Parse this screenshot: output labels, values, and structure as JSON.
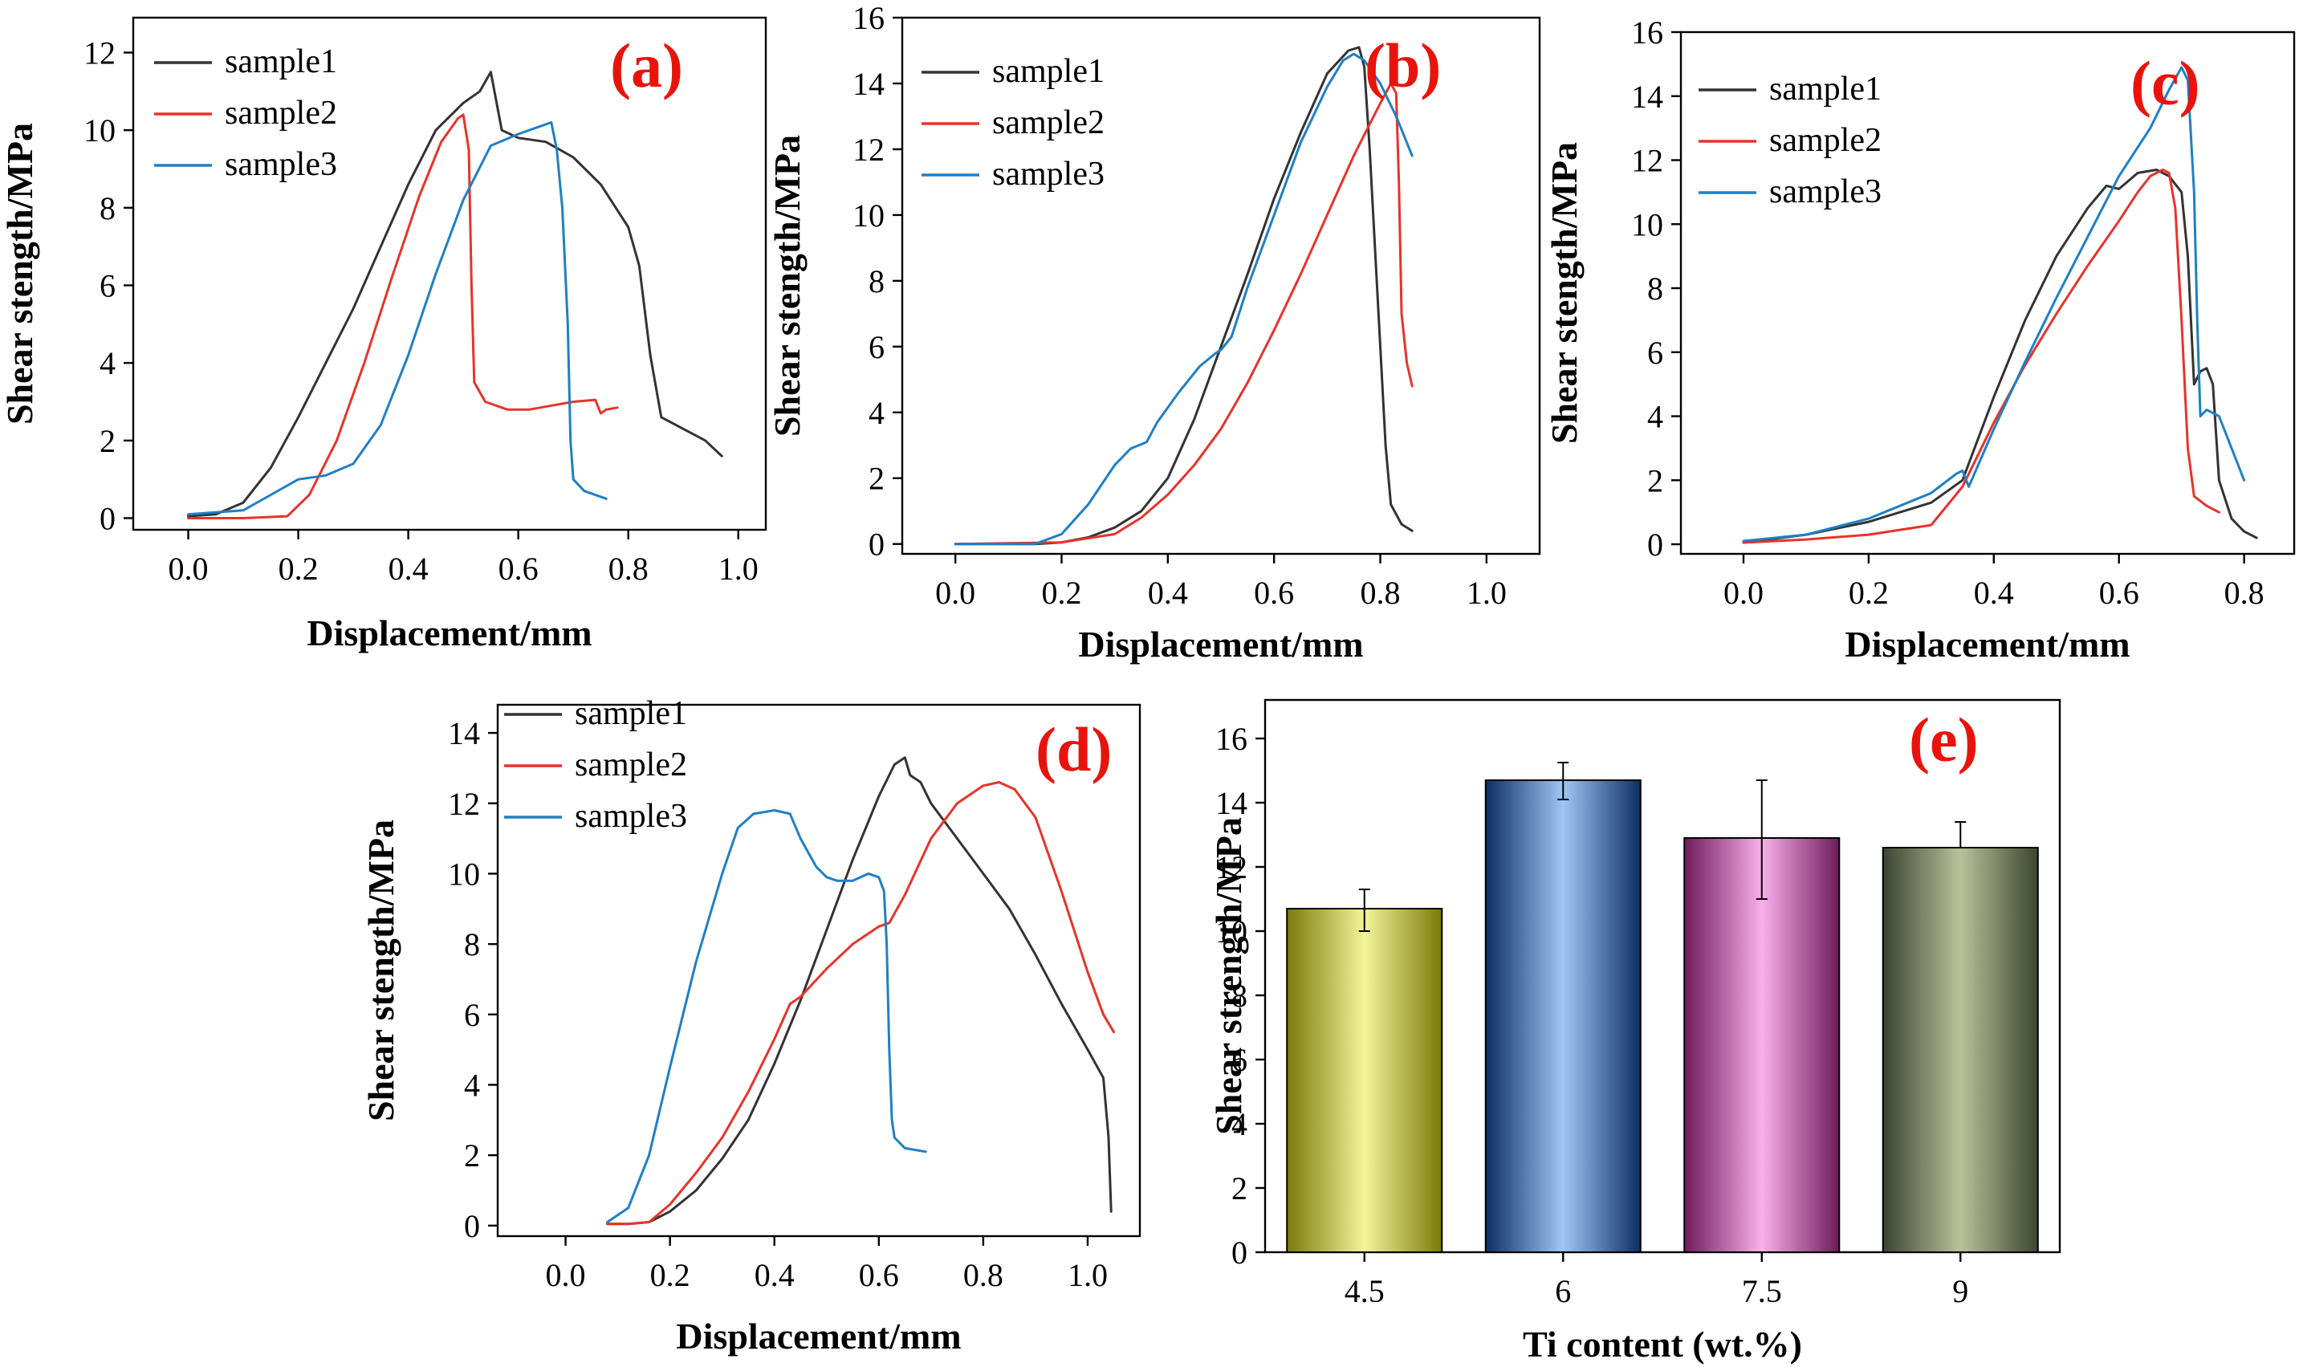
{
  "colors": {
    "sample1": "#333333",
    "sample2": "#e8332a",
    "sample3": "#1f7fc6",
    "panel_letter": "#e8140c"
  },
  "chart_data": [
    {
      "id": "a",
      "type": "line",
      "panel_label": "(a)",
      "xlabel": "Displacement/mm",
      "ylabel": "Shear stength/MPa",
      "xlim": [
        -0.1,
        1.05
      ],
      "ylim": [
        -0.3,
        12.9
      ],
      "xticks": [
        0.0,
        0.2,
        0.4,
        0.6,
        0.8,
        1.0
      ],
      "yticks": [
        0,
        2,
        4,
        6,
        8,
        10,
        12
      ],
      "xtick_labels": [
        "0.0",
        "0.2",
        "0.4",
        "0.6",
        "0.8",
        "1.0"
      ],
      "ytick_labels": [
        "0",
        "2",
        "4",
        "6",
        "8",
        "10",
        "12"
      ],
      "legend_position": "top-left",
      "series": [
        {
          "name": "sample1",
          "color": "#333333",
          "x": [
            0.0,
            0.05,
            0.1,
            0.15,
            0.2,
            0.25,
            0.3,
            0.35,
            0.4,
            0.45,
            0.5,
            0.53,
            0.55,
            0.57,
            0.6,
            0.65,
            0.7,
            0.75,
            0.8,
            0.82,
            0.84,
            0.86,
            0.9,
            0.94,
            0.97
          ],
          "y": [
            0.05,
            0.1,
            0.4,
            1.3,
            2.6,
            4.0,
            5.4,
            7.0,
            8.6,
            10.0,
            10.7,
            11.0,
            11.5,
            10.0,
            9.8,
            9.7,
            9.3,
            8.6,
            7.5,
            6.5,
            4.2,
            2.6,
            2.3,
            2.0,
            1.6
          ]
        },
        {
          "name": "sample2",
          "color": "#e8332a",
          "x": [
            0.0,
            0.1,
            0.18,
            0.22,
            0.27,
            0.32,
            0.37,
            0.42,
            0.46,
            0.49,
            0.5,
            0.51,
            0.515,
            0.52,
            0.54,
            0.58,
            0.62,
            0.66,
            0.7,
            0.74,
            0.75,
            0.76,
            0.78
          ],
          "y": [
            0.0,
            0.0,
            0.05,
            0.6,
            2.0,
            4.0,
            6.2,
            8.3,
            9.7,
            10.3,
            10.4,
            9.5,
            6.0,
            3.5,
            3.0,
            2.8,
            2.8,
            2.9,
            3.0,
            3.05,
            2.7,
            2.8,
            2.85
          ]
        },
        {
          "name": "sample3",
          "color": "#1f7fc6",
          "x": [
            0.0,
            0.1,
            0.15,
            0.2,
            0.25,
            0.3,
            0.35,
            0.4,
            0.45,
            0.5,
            0.55,
            0.6,
            0.64,
            0.66,
            0.67,
            0.68,
            0.69,
            0.695,
            0.7,
            0.72,
            0.76
          ],
          "y": [
            0.1,
            0.2,
            0.6,
            1.0,
            1.1,
            1.4,
            2.4,
            4.2,
            6.3,
            8.2,
            9.6,
            9.9,
            10.1,
            10.2,
            9.5,
            8.0,
            5.0,
            2.0,
            1.0,
            0.7,
            0.5
          ]
        }
      ]
    },
    {
      "id": "b",
      "type": "line",
      "panel_label": "(b)",
      "xlabel": "Displacement/mm",
      "ylabel": "Shear stength/MPa",
      "xlim": [
        -0.1,
        1.1
      ],
      "ylim": [
        -0.3,
        16.0
      ],
      "xticks": [
        0.0,
        0.2,
        0.4,
        0.6,
        0.8,
        1.0
      ],
      "yticks": [
        0,
        2,
        4,
        6,
        8,
        10,
        12,
        14,
        16
      ],
      "xtick_labels": [
        "0.0",
        "0.2",
        "0.4",
        "0.6",
        "0.8",
        "1.0"
      ],
      "ytick_labels": [
        "0",
        "2",
        "4",
        "6",
        "8",
        "10",
        "12",
        "14",
        "16"
      ],
      "legend_position": "top-left",
      "series": [
        {
          "name": "sample1",
          "color": "#333333",
          "x": [
            0.0,
            0.15,
            0.2,
            0.25,
            0.3,
            0.35,
            0.4,
            0.45,
            0.5,
            0.55,
            0.6,
            0.65,
            0.7,
            0.74,
            0.76,
            0.77,
            0.78,
            0.79,
            0.8,
            0.81,
            0.82,
            0.84,
            0.86
          ],
          "y": [
            0.0,
            0.0,
            0.05,
            0.2,
            0.5,
            1.0,
            2.0,
            3.8,
            6.0,
            8.2,
            10.5,
            12.5,
            14.3,
            15.0,
            15.1,
            14.5,
            12.0,
            9.0,
            6.0,
            3.0,
            1.2,
            0.6,
            0.4
          ]
        },
        {
          "name": "sample2",
          "color": "#e8332a",
          "x": [
            0.0,
            0.2,
            0.3,
            0.35,
            0.4,
            0.45,
            0.5,
            0.55,
            0.6,
            0.65,
            0.7,
            0.75,
            0.8,
            0.82,
            0.83,
            0.835,
            0.84,
            0.85,
            0.86
          ],
          "y": [
            0.0,
            0.05,
            0.3,
            0.8,
            1.5,
            2.4,
            3.5,
            4.9,
            6.5,
            8.2,
            10.0,
            11.8,
            13.4,
            14.0,
            13.7,
            11.0,
            7.0,
            5.5,
            4.8
          ]
        },
        {
          "name": "sample3",
          "color": "#1f7fc6",
          "x": [
            0.0,
            0.15,
            0.2,
            0.25,
            0.3,
            0.33,
            0.36,
            0.38,
            0.42,
            0.46,
            0.49,
            0.5,
            0.52,
            0.55,
            0.6,
            0.65,
            0.7,
            0.73,
            0.75,
            0.77,
            0.8,
            0.83,
            0.86
          ],
          "y": [
            0.0,
            0.0,
            0.3,
            1.2,
            2.4,
            2.9,
            3.1,
            3.7,
            4.6,
            5.4,
            5.8,
            5.9,
            6.3,
            7.8,
            10.0,
            12.2,
            13.9,
            14.7,
            14.9,
            14.7,
            14.0,
            13.0,
            11.8
          ]
        }
      ]
    },
    {
      "id": "c",
      "type": "line",
      "panel_label": "(c)",
      "xlabel": "Displacement/mm",
      "ylabel": "Shear stength/MPa",
      "xlim": [
        -0.1,
        0.88
      ],
      "ylim": [
        -0.3,
        16.0
      ],
      "xticks": [
        0.0,
        0.2,
        0.4,
        0.6,
        0.8
      ],
      "yticks": [
        0,
        2,
        4,
        6,
        8,
        10,
        12,
        14,
        16
      ],
      "xtick_labels": [
        "0.0",
        "0.2",
        "0.4",
        "0.6",
        "0.8"
      ],
      "ytick_labels": [
        "0",
        "2",
        "4",
        "6",
        "8",
        "10",
        "12",
        "14",
        "16"
      ],
      "legend_position": "top-left",
      "series": [
        {
          "name": "sample1",
          "color": "#333333",
          "x": [
            0.0,
            0.1,
            0.2,
            0.3,
            0.35,
            0.4,
            0.45,
            0.5,
            0.55,
            0.58,
            0.6,
            0.63,
            0.66,
            0.68,
            0.7,
            0.71,
            0.72,
            0.73,
            0.74,
            0.75,
            0.76,
            0.78,
            0.8,
            0.82
          ],
          "y": [
            0.05,
            0.3,
            0.7,
            1.3,
            2.0,
            4.6,
            7.0,
            9.0,
            10.5,
            11.2,
            11.1,
            11.6,
            11.7,
            11.5,
            11.0,
            9.0,
            5.0,
            5.4,
            5.5,
            5.0,
            2.0,
            0.8,
            0.4,
            0.2
          ]
        },
        {
          "name": "sample2",
          "color": "#e8332a",
          "x": [
            0.0,
            0.1,
            0.2,
            0.3,
            0.35,
            0.4,
            0.45,
            0.5,
            0.55,
            0.6,
            0.63,
            0.65,
            0.67,
            0.68,
            0.69,
            0.7,
            0.71,
            0.72,
            0.74,
            0.76
          ],
          "y": [
            0.05,
            0.15,
            0.3,
            0.6,
            1.8,
            3.8,
            5.6,
            7.2,
            8.7,
            10.1,
            11.0,
            11.5,
            11.7,
            11.6,
            10.5,
            7.0,
            3.0,
            1.5,
            1.2,
            1.0
          ]
        },
        {
          "name": "sample3",
          "color": "#1f7fc6",
          "x": [
            0.0,
            0.1,
            0.2,
            0.25,
            0.3,
            0.34,
            0.35,
            0.36,
            0.4,
            0.45,
            0.5,
            0.55,
            0.6,
            0.65,
            0.68,
            0.7,
            0.71,
            0.72,
            0.725,
            0.73,
            0.74,
            0.76,
            0.78,
            0.8
          ],
          "y": [
            0.1,
            0.3,
            0.8,
            1.2,
            1.6,
            2.2,
            2.3,
            1.8,
            3.6,
            5.7,
            7.7,
            9.6,
            11.5,
            13.0,
            14.2,
            14.9,
            14.5,
            11.0,
            7.0,
            4.0,
            4.2,
            4.0,
            3.0,
            2.0
          ]
        }
      ]
    },
    {
      "id": "d",
      "type": "line",
      "panel_label": "(d)",
      "xlabel": "Displacement/mm",
      "ylabel": "Shear stength/MPa",
      "xlim": [
        -0.13,
        1.1
      ],
      "ylim": [
        -0.3,
        14.8
      ],
      "xticks": [
        0.0,
        0.2,
        0.4,
        0.6,
        0.8,
        1.0
      ],
      "yticks": [
        0,
        2,
        4,
        6,
        8,
        10,
        12,
        14
      ],
      "xtick_labels": [
        "0.0",
        "0.2",
        "0.4",
        "0.6",
        "0.8",
        "1.0"
      ],
      "ytick_labels": [
        "0",
        "2",
        "4",
        "6",
        "8",
        "10",
        "12",
        "14"
      ],
      "legend_position": "top-left",
      "series": [
        {
          "name": "sample1",
          "color": "#333333",
          "x": [
            0.08,
            0.12,
            0.16,
            0.2,
            0.25,
            0.3,
            0.35,
            0.4,
            0.45,
            0.5,
            0.55,
            0.6,
            0.63,
            0.65,
            0.66,
            0.68,
            0.7,
            0.75,
            0.8,
            0.85,
            0.9,
            0.95,
            1.0,
            1.03,
            1.04,
            1.045
          ],
          "y": [
            0.05,
            0.05,
            0.1,
            0.4,
            1.0,
            1.9,
            3.0,
            4.6,
            6.4,
            8.4,
            10.4,
            12.2,
            13.1,
            13.3,
            12.8,
            12.6,
            12.0,
            11.0,
            10.0,
            9.0,
            7.7,
            6.3,
            5.0,
            4.2,
            2.5,
            0.4
          ]
        },
        {
          "name": "sample2",
          "color": "#e8332a",
          "x": [
            0.08,
            0.12,
            0.16,
            0.2,
            0.25,
            0.3,
            0.35,
            0.4,
            0.43,
            0.45,
            0.5,
            0.55,
            0.6,
            0.62,
            0.65,
            0.7,
            0.75,
            0.8,
            0.83,
            0.86,
            0.9,
            0.95,
            1.0,
            1.03,
            1.05
          ],
          "y": [
            0.05,
            0.05,
            0.1,
            0.6,
            1.5,
            2.5,
            3.8,
            5.3,
            6.3,
            6.5,
            7.3,
            8.0,
            8.5,
            8.6,
            9.4,
            11.0,
            12.0,
            12.5,
            12.6,
            12.4,
            11.6,
            9.5,
            7.2,
            6.0,
            5.5
          ]
        },
        {
          "name": "sample3",
          "color": "#1f7fc6",
          "x": [
            0.08,
            0.12,
            0.16,
            0.2,
            0.25,
            0.3,
            0.33,
            0.36,
            0.4,
            0.43,
            0.45,
            0.48,
            0.5,
            0.52,
            0.55,
            0.58,
            0.6,
            0.61,
            0.615,
            0.62,
            0.625,
            0.63,
            0.65,
            0.69
          ],
          "y": [
            0.1,
            0.5,
            2.0,
            4.5,
            7.5,
            10.0,
            11.3,
            11.7,
            11.8,
            11.7,
            11.0,
            10.2,
            9.9,
            9.8,
            9.8,
            10.0,
            9.9,
            9.5,
            8.0,
            5.0,
            3.0,
            2.5,
            2.2,
            2.1
          ]
        }
      ]
    },
    {
      "id": "e",
      "type": "bar",
      "panel_label": "(e)",
      "xlabel": "Ti content (wt.%)",
      "ylabel": "Shear strength/MPa",
      "categories": [
        "4.5",
        "6",
        "7.5",
        "9"
      ],
      "values": [
        10.7,
        14.7,
        12.9,
        12.6
      ],
      "error_low": [
        0.7,
        0.6,
        1.9,
        0.0
      ],
      "error_high": [
        0.6,
        0.55,
        1.8,
        0.8
      ],
      "ylim": [
        0,
        17.2
      ],
      "yticks": [
        0,
        2,
        4,
        6,
        8,
        10,
        12,
        14,
        16
      ],
      "ytick_labels": [
        "0",
        "2",
        "4",
        "6",
        "8",
        "10",
        "12",
        "14",
        "16"
      ],
      "bar_colors": [
        [
          "#7a7a08",
          "#f4f49a",
          "#7a7a08"
        ],
        [
          "#0d2e63",
          "#9fc6f4",
          "#0d2e63"
        ],
        [
          "#6e1a5a",
          "#f7b0ea",
          "#6e1a5a"
        ],
        [
          "#3c4530",
          "#b8c29a",
          "#3c4530"
        ]
      ]
    }
  ]
}
